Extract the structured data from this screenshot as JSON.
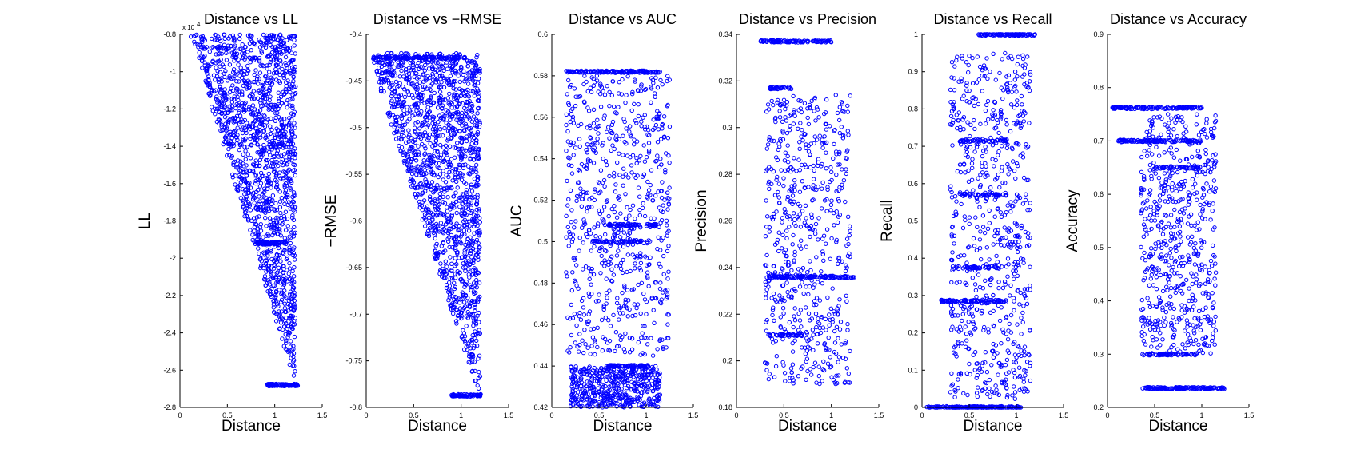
{
  "figure": {
    "marker_color": "#0000ff",
    "axis_color": "#000000",
    "background": "#ffffff"
  },
  "chart_data": [
    {
      "type": "scatter",
      "title": "Distance vs LL",
      "xlabel": "Distance",
      "ylabel": "LL",
      "xlim": [
        0,
        1.5
      ],
      "ylim": [
        -2.8,
        -0.8
      ],
      "xticks": [
        0,
        0.5,
        1,
        1.5
      ],
      "xtick_labels": [
        "0",
        "0.5",
        "1",
        "1.5"
      ],
      "yticks": [
        -2.8,
        -2.6,
        -2.4,
        -2.2,
        -2,
        -1.8,
        -1.6,
        -1.4,
        -1.2,
        -1,
        -0.8
      ],
      "ytick_labels": [
        "-2.8",
        "-2.6",
        "-2.4",
        "-2.2",
        "-2",
        "-1.8",
        "-1.6",
        "-1.4",
        "-1.2",
        "-1",
        "-0.8"
      ],
      "y_exponent_label": "x 10",
      "y_exponent_power": "4",
      "clusters": [
        {
          "kind": "wedge",
          "x": [
            0.1,
            1.22
          ],
          "y_top": -0.8,
          "y_bottom_at_x0": -0.8,
          "y_bottom_at_x1": -2.68,
          "n": 1500
        },
        {
          "kind": "band",
          "x": [
            0.92,
            1.25
          ],
          "y": -2.68,
          "n": 90
        },
        {
          "kind": "band",
          "x": [
            0.8,
            1.12
          ],
          "y": -1.92,
          "n": 60
        }
      ],
      "grid": false
    },
    {
      "type": "scatter",
      "title": "Distance vs −RMSE",
      "xlabel": "Distance",
      "ylabel": "−RMSE",
      "xlim": [
        0,
        1.5
      ],
      "ylim": [
        -0.8,
        -0.4
      ],
      "xticks": [
        0,
        0.5,
        1,
        1.5
      ],
      "xtick_labels": [
        "0",
        "0.5",
        "1",
        "1.5"
      ],
      "yticks": [
        -0.8,
        -0.75,
        -0.7,
        -0.65,
        -0.6,
        -0.55,
        -0.5,
        -0.45,
        -0.4
      ],
      "ytick_labels": [
        "-0.8",
        "-0.75",
        "-0.7",
        "-0.65",
        "-0.6",
        "-0.55",
        "-0.5",
        "-0.45",
        "-0.4"
      ],
      "clusters": [
        {
          "kind": "wedge",
          "x": [
            0.05,
            1.2
          ],
          "y_top": -0.42,
          "y_bottom_at_x0": -0.43,
          "y_bottom_at_x1": -0.79,
          "n": 1500
        },
        {
          "kind": "band",
          "x": [
            0.05,
            1.05
          ],
          "y": -0.425,
          "n": 120
        },
        {
          "kind": "band",
          "x": [
            0.9,
            1.22
          ],
          "y": -0.787,
          "n": 80
        }
      ],
      "grid": false
    },
    {
      "type": "scatter",
      "title": "Distance vs AUC",
      "xlabel": "Distance",
      "ylabel": "AUC",
      "xlim": [
        0,
        1.5
      ],
      "ylim": [
        0.42,
        0.6
      ],
      "xticks": [
        0,
        0.5,
        1,
        1.5
      ],
      "xtick_labels": [
        "0",
        "0.5",
        "1",
        "1.5"
      ],
      "yticks": [
        0.42,
        0.44,
        0.46,
        0.48,
        0.5,
        0.52,
        0.54,
        0.56,
        0.58,
        0.6
      ],
      "ytick_labels": [
        "0.42",
        "0.44",
        "0.46",
        "0.48",
        "0.5",
        "0.52",
        "0.54",
        "0.56",
        "0.58",
        "0.6"
      ],
      "clusters": [
        {
          "kind": "band",
          "x": [
            0.15,
            1.15
          ],
          "y": 0.582,
          "n": 140
        },
        {
          "kind": "scatter",
          "x": [
            0.15,
            1.25
          ],
          "y": [
            0.445,
            0.58
          ],
          "n": 700
        },
        {
          "kind": "scatter",
          "x": [
            0.2,
            1.15
          ],
          "y": [
            0.42,
            0.44
          ],
          "n": 500
        },
        {
          "kind": "band",
          "x": [
            0.6,
            1.1
          ],
          "y": 0.508,
          "n": 60
        },
        {
          "kind": "band",
          "x": [
            0.4,
            0.95
          ],
          "y": 0.5,
          "n": 50
        },
        {
          "kind": "band",
          "x": [
            0.6,
            1.05
          ],
          "y": 0.44,
          "n": 60
        }
      ],
      "grid": false
    },
    {
      "type": "scatter",
      "title": "Distance vs Precision",
      "xlabel": "Distance",
      "ylabel": "Precision",
      "xlim": [
        0,
        1.5
      ],
      "ylim": [
        0.18,
        0.34
      ],
      "xticks": [
        0,
        0.5,
        1,
        1.5
      ],
      "xtick_labels": [
        "0",
        "0.5",
        "1",
        "1.5"
      ],
      "yticks": [
        0.18,
        0.2,
        0.22,
        0.24,
        0.26,
        0.28,
        0.3,
        0.32,
        0.34
      ],
      "ytick_labels": [
        "0.18",
        "0.2",
        "0.22",
        "0.24",
        "0.26",
        "0.28",
        "0.3",
        "0.32",
        "0.34"
      ],
      "clusters": [
        {
          "kind": "band",
          "x": [
            0.25,
            1.0
          ],
          "y": 0.337,
          "n": 100
        },
        {
          "kind": "band",
          "x": [
            0.3,
            1.25
          ],
          "y": 0.236,
          "n": 130
        },
        {
          "kind": "band",
          "x": [
            0.35,
            0.6
          ],
          "y": 0.317,
          "n": 30
        },
        {
          "kind": "band",
          "x": [
            0.35,
            0.7
          ],
          "y": 0.211,
          "n": 40
        },
        {
          "kind": "scatter",
          "x": [
            0.3,
            1.2
          ],
          "y": [
            0.19,
            0.315
          ],
          "n": 600
        }
      ],
      "grid": false
    },
    {
      "type": "scatter",
      "title": "Distance vs Recall",
      "xlabel": "Distance",
      "ylabel": "Recall",
      "xlim": [
        0,
        1.5
      ],
      "ylim": [
        0,
        1
      ],
      "xticks": [
        0,
        0.5,
        1,
        1.5
      ],
      "xtick_labels": [
        "0",
        "0.5",
        "1",
        "1.5"
      ],
      "yticks": [
        0,
        0.1,
        0.2,
        0.3,
        0.4,
        0.5,
        0.6,
        0.7,
        0.8,
        0.9,
        1
      ],
      "ytick_labels": [
        "0",
        "0.1",
        "0.2",
        "0.3",
        "0.4",
        "0.5",
        "0.6",
        "0.7",
        "0.8",
        "0.9",
        "1"
      ],
      "clusters": [
        {
          "kind": "band",
          "x": [
            0.6,
            1.2
          ],
          "y": 1.0,
          "n": 100
        },
        {
          "kind": "band",
          "x": [
            0.05,
            1.05
          ],
          "y": 0.0,
          "n": 160
        },
        {
          "kind": "band",
          "x": [
            0.2,
            0.9
          ],
          "y": 0.285,
          "n": 90
        },
        {
          "kind": "band",
          "x": [
            0.4,
            0.9
          ],
          "y": 0.715,
          "n": 50
        },
        {
          "kind": "band",
          "x": [
            0.4,
            0.9
          ],
          "y": 0.57,
          "n": 40
        },
        {
          "kind": "band",
          "x": [
            0.4,
            0.85
          ],
          "y": 0.375,
          "n": 40
        },
        {
          "kind": "scatter",
          "x": [
            0.3,
            1.15
          ],
          "y": [
            0.02,
            0.95
          ],
          "n": 700
        }
      ],
      "grid": false
    },
    {
      "type": "scatter",
      "title": "Distance vs Accuracy",
      "xlabel": "Distance",
      "ylabel": "Accuracy",
      "xlim": [
        0,
        1.5
      ],
      "ylim": [
        0.2,
        0.9
      ],
      "xticks": [
        0,
        0.5,
        1,
        1.5
      ],
      "xtick_labels": [
        "0",
        "0.5",
        "1",
        "1.5"
      ],
      "yticks": [
        0.2,
        0.3,
        0.4,
        0.5,
        0.6,
        0.7,
        0.8,
        0.9
      ],
      "ytick_labels": [
        "0.2",
        "0.3",
        "0.4",
        "0.5",
        "0.6",
        "0.7",
        "0.8",
        "0.9"
      ],
      "clusters": [
        {
          "kind": "band",
          "x": [
            0.05,
            1.0
          ],
          "y": 0.762,
          "n": 130
        },
        {
          "kind": "band",
          "x": [
            0.1,
            1.0
          ],
          "y": 0.7,
          "n": 110
        },
        {
          "kind": "band",
          "x": [
            0.35,
            1.25
          ],
          "y": 0.236,
          "n": 130
        },
        {
          "kind": "band",
          "x": [
            0.35,
            0.95
          ],
          "y": 0.3,
          "n": 60
        },
        {
          "kind": "band",
          "x": [
            0.5,
            1.0
          ],
          "y": 0.65,
          "n": 50
        },
        {
          "kind": "scatter",
          "x": [
            0.35,
            1.15
          ],
          "y": [
            0.3,
            0.75
          ],
          "n": 600
        }
      ],
      "grid": false
    }
  ]
}
